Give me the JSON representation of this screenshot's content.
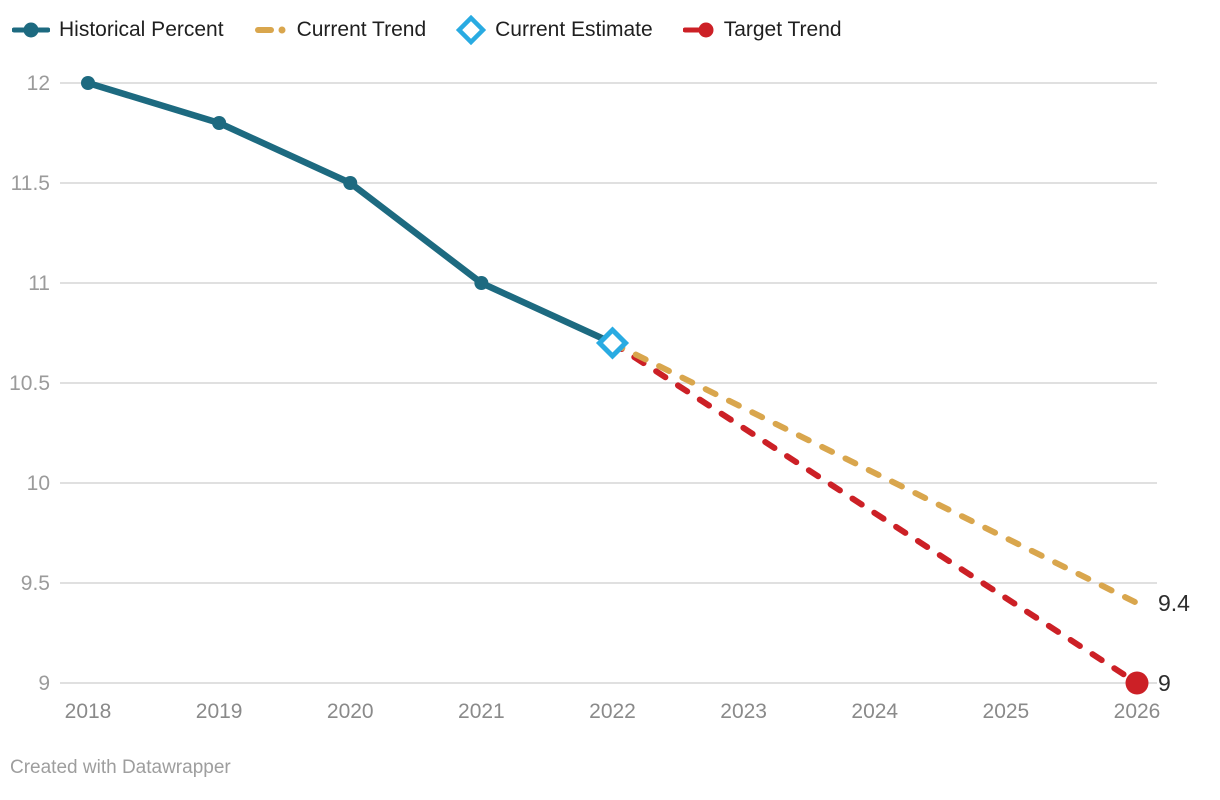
{
  "legend": {
    "items": [
      {
        "label": "Historical Percent",
        "color": "#1d6a80",
        "marker": "line-dot"
      },
      {
        "label": "Current Trend",
        "color": "#d9a64d",
        "marker": "dash-dot"
      },
      {
        "label": "Current Estimate",
        "color": "#29abe2",
        "marker": "diamond-outline"
      },
      {
        "label": "Target Trend",
        "color": "#cc2026",
        "marker": "line-dot-right"
      }
    ]
  },
  "footer": {
    "attribution": "Created with Datawrapper"
  },
  "chart_data": {
    "type": "line",
    "title": "",
    "xlabel": "",
    "ylabel": "",
    "x_years": [
      2018,
      2019,
      2020,
      2021,
      2022,
      2023,
      2024,
      2025,
      2026
    ],
    "ylim": [
      9,
      12
    ],
    "ytick_values": [
      12,
      11.5,
      11,
      10.5,
      10,
      9.5,
      9
    ],
    "ytick_labels": [
      "12",
      "11.5",
      "11",
      "10.5",
      "10",
      "9.5",
      "9"
    ],
    "grid": true,
    "legend_position": "top",
    "series": [
      {
        "name": "Historical Percent",
        "type": "line",
        "style": "solid",
        "color": "#1d6a80",
        "points": [
          [
            2018,
            12
          ],
          [
            2019,
            11.8
          ],
          [
            2020,
            11.5
          ],
          [
            2021,
            11
          ],
          [
            2022,
            10.7
          ]
        ]
      },
      {
        "name": "Current Trend",
        "type": "line",
        "style": "dashed",
        "color": "#d9a64d",
        "points": [
          [
            2022,
            10.7
          ],
          [
            2026,
            9.4
          ]
        ],
        "end_label": "9.4"
      },
      {
        "name": "Target Trend",
        "type": "line",
        "style": "dashed",
        "color": "#cc2026",
        "points": [
          [
            2022,
            10.7
          ],
          [
            2026,
            9
          ]
        ],
        "end_label": "9",
        "end_marker": "dot"
      },
      {
        "name": "Current Estimate",
        "type": "point",
        "marker": "diamond",
        "color": "#29abe2",
        "points": [
          [
            2022,
            10.7
          ]
        ]
      }
    ]
  }
}
